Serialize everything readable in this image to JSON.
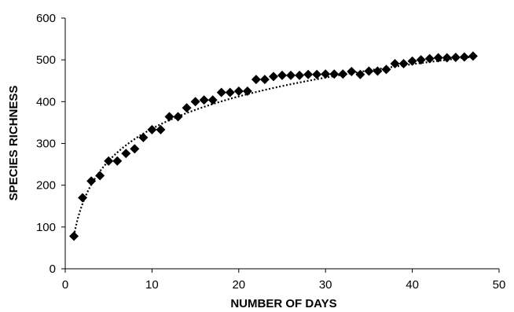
{
  "chart_data": {
    "type": "scatter",
    "title": "",
    "xlabel": "NUMBER OF DAYS",
    "ylabel": "SPECIES RICHNESS",
    "xlim": [
      0,
      50
    ],
    "ylim": [
      0,
      600
    ],
    "x_ticks": [
      "0",
      "10",
      "20",
      "30",
      "40",
      "50"
    ],
    "y_ticks": [
      "0",
      "100",
      "200",
      "300",
      "400",
      "500",
      "600"
    ],
    "grid": false,
    "legend": "none",
    "colors": {
      "markers": "#000000",
      "trendline": "#000000",
      "axes": "#000000"
    },
    "series": [
      {
        "marker": "diamond",
        "x": [
          1,
          2,
          3,
          4,
          5,
          6,
          7,
          8,
          9,
          10,
          11,
          12,
          13,
          14,
          15,
          16,
          17,
          18,
          19,
          20,
          21,
          22,
          23,
          24,
          25,
          26,
          27,
          28,
          29,
          30,
          31,
          32,
          33,
          34,
          35,
          36,
          37,
          38,
          39,
          40,
          41,
          42,
          43,
          44,
          45,
          46,
          47
        ],
        "values": [
          78,
          170,
          210,
          223,
          258,
          258,
          276,
          287,
          314,
          333,
          333,
          364,
          364,
          385,
          400,
          404,
          404,
          422,
          422,
          425,
          425,
          453,
          453,
          460,
          463,
          463,
          463,
          465,
          465,
          466,
          466,
          466,
          472,
          465,
          473,
          473,
          477,
          491,
          491,
          497,
          500,
          503,
          505,
          505,
          506,
          507,
          509
        ]
      }
    ],
    "trendline": {
      "type": "logarithmic",
      "style": "dotted",
      "x_start": 1,
      "x_end": 47,
      "a": 111.3,
      "b": 79
    }
  }
}
